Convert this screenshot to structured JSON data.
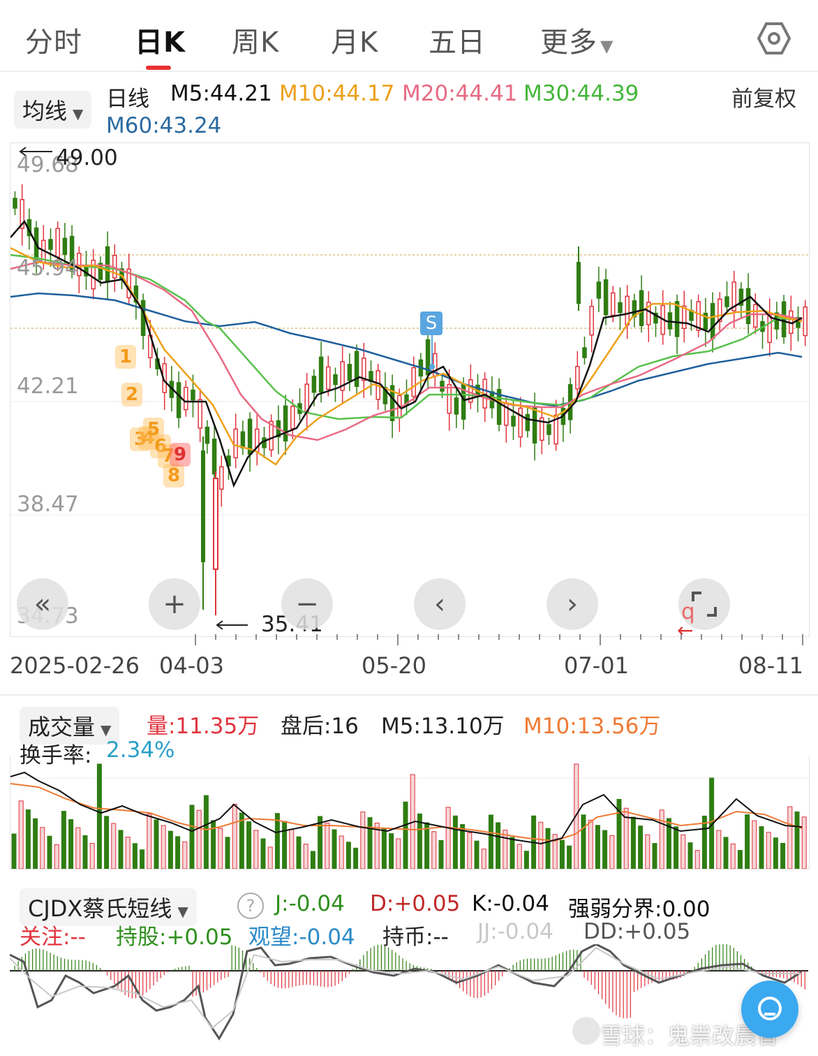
{
  "tabs": [
    {
      "label": "分时",
      "active": false
    },
    {
      "label": "日K",
      "active": true
    },
    {
      "label": "周K",
      "active": false
    },
    {
      "label": "月K",
      "active": false
    },
    {
      "label": "五日",
      "active": false
    },
    {
      "label": "更多",
      "active": false
    }
  ],
  "settings_icon": "hexagon-settings-icon",
  "kline_header": {
    "selector_label": "均线",
    "period_label": "日线",
    "m5": "M5:44.21",
    "m10": "M10:44.17",
    "m20": "M20:44.41",
    "m30": "M30:44.39",
    "m60": "M60:43.24",
    "adjust_label": "前复权"
  },
  "price_axis": [
    "49.68",
    "45.94",
    "42.21",
    "38.47",
    "34.73"
  ],
  "price_marks": {
    "high": "49.00",
    "low": "35.41"
  },
  "signal_marker": "S",
  "sequence_labels": [
    "1",
    "2",
    "3",
    "4",
    "5",
    "6",
    "7",
    "8",
    "9"
  ],
  "q_marker": "q",
  "chart_controls": [
    "«",
    "+",
    "−",
    "‹",
    "›"
  ],
  "dates": [
    "2025-02-26",
    "04-03",
    "05-20",
    "07-01",
    "08-11"
  ],
  "volume_header": {
    "selector_label": "成交量",
    "volume": "量:11.35万",
    "after_hours": "盘后:16",
    "m5": "M5:13.10万",
    "m10": "M10:13.56万",
    "turnover_label": "换手率:",
    "turnover_value": "2.34%"
  },
  "indicator_header": {
    "selector_label": "CJDX蔡氏短线",
    "help_icon": "?",
    "j": "J:-0.04",
    "d": "D:+0.05",
    "k": "K:-0.04",
    "boundary": "强弱分界:0.00",
    "watch": "关注:--",
    "hold": "持股:+0.05",
    "observe": "观望:-0.04",
    "cash": "持币:--",
    "jj": "JJ:-0.04",
    "dd": "DD:+0.05"
  },
  "watermark": "雪球：鬼祟改晨昏",
  "colors": {
    "up": "#e0343d",
    "down": "#2f7d12",
    "m5": "#111111",
    "m10": "#eda01a",
    "m20": "#e86a84",
    "m30": "#58c24c",
    "m60": "#1f5f9c",
    "active_underline": "#e8302f",
    "signal": "#5aa6e0"
  }
}
